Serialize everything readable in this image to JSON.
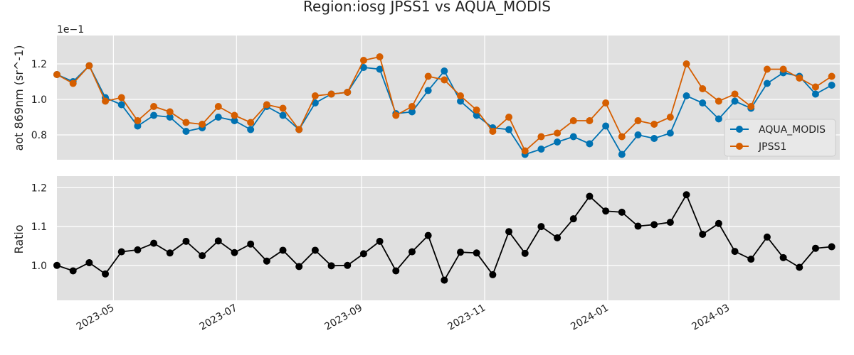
{
  "chart_data": [
    {
      "type": "line",
      "title": "Region:iosg JPSS1 vs AQUA_MODIS",
      "ylabel": "aot 869nm (sr^-1)",
      "offset_text": "1e−1",
      "ylim": [
        0.66,
        1.36
      ],
      "yticks": [
        0.8,
        1.0,
        1.2
      ],
      "ytick_labels": [
        "0.8",
        "1.0",
        "1.2"
      ],
      "grid": true,
      "legend_position": "lower right",
      "x": [
        "2023-04-03",
        "2023-04-11",
        "2023-04-19",
        "2023-04-27",
        "2023-05-05",
        "2023-05-13",
        "2023-05-21",
        "2023-05-29",
        "2023-06-06",
        "2023-06-14",
        "2023-06-22",
        "2023-06-30",
        "2023-07-08",
        "2023-07-16",
        "2023-07-24",
        "2023-08-01",
        "2023-08-09",
        "2023-08-17",
        "2023-08-25",
        "2023-09-02",
        "2023-09-10",
        "2023-09-18",
        "2023-09-26",
        "2023-10-04",
        "2023-10-12",
        "2023-10-20",
        "2023-10-28",
        "2023-11-05",
        "2023-11-13",
        "2023-11-21",
        "2023-11-29",
        "2023-12-07",
        "2023-12-15",
        "2023-12-23",
        "2023-12-31",
        "2024-01-08",
        "2024-01-16",
        "2024-01-24",
        "2024-02-01",
        "2024-02-09",
        "2024-02-17",
        "2024-02-25",
        "2024-03-04",
        "2024-03-12",
        "2024-03-20",
        "2024-03-28",
        "2024-04-05",
        "2024-04-13",
        "2024-04-21"
      ],
      "series": [
        {
          "name": "AQUA_MODIS",
          "color": "#0072b2",
          "values": [
            1.14,
            1.1,
            1.19,
            1.01,
            0.97,
            0.85,
            0.91,
            0.9,
            0.82,
            0.84,
            0.9,
            0.88,
            0.83,
            0.96,
            0.91,
            0.83,
            0.98,
            1.03,
            1.04,
            1.18,
            1.17,
            0.92,
            0.93,
            1.05,
            1.16,
            0.99,
            0.91,
            0.84,
            0.83,
            0.69,
            0.72,
            0.76,
            0.79,
            0.75,
            0.85,
            0.69,
            0.8,
            0.78,
            0.81,
            1.02,
            0.98,
            0.89,
            0.99,
            0.95,
            1.09,
            1.15,
            1.13,
            1.03,
            1.08
          ]
        },
        {
          "name": "JPSS1",
          "color": "#d55e00",
          "values": [
            1.14,
            1.09,
            1.19,
            0.99,
            1.01,
            0.88,
            0.96,
            0.93,
            0.87,
            0.86,
            0.96,
            0.91,
            0.87,
            0.97,
            0.95,
            0.83,
            1.02,
            1.03,
            1.04,
            1.22,
            1.24,
            0.91,
            0.96,
            1.13,
            1.11,
            1.02,
            0.94,
            0.82,
            0.9,
            0.71,
            0.79,
            0.81,
            0.88,
            0.88,
            0.98,
            0.79,
            0.88,
            0.86,
            0.9,
            1.2,
            1.06,
            0.99,
            1.03,
            0.96,
            1.17,
            1.17,
            1.12,
            1.07,
            1.13
          ]
        }
      ]
    },
    {
      "type": "line",
      "ylabel": "Ratio",
      "ylim": [
        0.91,
        1.23
      ],
      "yticks": [
        1.0,
        1.1,
        1.2
      ],
      "ytick_labels": [
        "1.0",
        "1.1",
        "1.2"
      ],
      "grid": true,
      "xtick_values": [
        "2023-05-01",
        "2023-07-01",
        "2023-09-01",
        "2023-11-01",
        "2024-01-01",
        "2024-03-01"
      ],
      "xtick_labels": [
        "2023-05",
        "2023-07",
        "2023-09",
        "2023-11",
        "2024-01",
        "2024-03"
      ],
      "series": [
        {
          "color": "#000000",
          "values": [
            1.0,
            0.986,
            1.007,
            0.978,
            1.035,
            1.04,
            1.057,
            1.032,
            1.062,
            1.025,
            1.063,
            1.033,
            1.055,
            1.011,
            1.039,
            0.997,
            1.039,
            0.999,
            1.0,
            1.03,
            1.062,
            0.986,
            1.035,
            1.077,
            0.962,
            1.034,
            1.032,
            0.976,
            1.087,
            1.031,
            1.1,
            1.071,
            1.12,
            1.178,
            1.14,
            1.137,
            1.101,
            1.105,
            1.111,
            1.182,
            1.08,
            1.108,
            1.036,
            1.016,
            1.073,
            1.02,
            0.995,
            1.044,
            1.048
          ]
        }
      ]
    }
  ]
}
